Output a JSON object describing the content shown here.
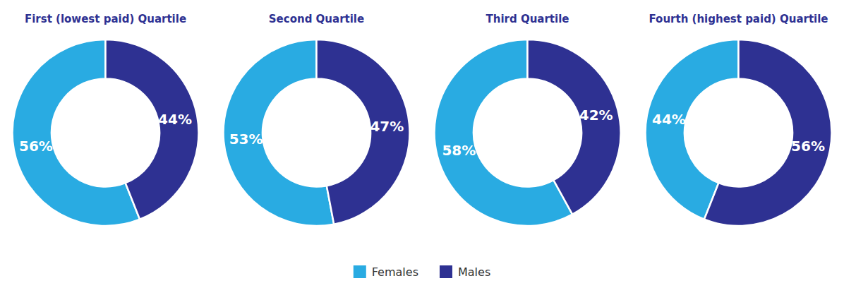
{
  "chart_data": [
    {
      "type": "pie",
      "title": "First (lowest paid) Quartile",
      "categories": [
        "Females",
        "Males"
      ],
      "values": [
        56,
        44
      ],
      "value_labels": [
        "56%",
        "44%"
      ],
      "colors": [
        "#29ABE2",
        "#2E3192"
      ],
      "data_labels": true,
      "legend": "bottom"
    },
    {
      "type": "pie",
      "title": "Second Quartile",
      "categories": [
        "Females",
        "Males"
      ],
      "values": [
        53,
        47
      ],
      "value_labels": [
        "53%",
        "47%"
      ],
      "colors": [
        "#29ABE2",
        "#2E3192"
      ],
      "data_labels": true,
      "legend": "bottom"
    },
    {
      "type": "pie",
      "title": "Third Quartile",
      "categories": [
        "Females",
        "Males"
      ],
      "values": [
        58,
        42
      ],
      "value_labels": [
        "58%",
        "42%"
      ],
      "colors": [
        "#29ABE2",
        "#2E3192"
      ],
      "data_labels": true,
      "legend": "bottom"
    },
    {
      "type": "pie",
      "title": "Fourth (highest paid) Quartile",
      "categories": [
        "Females",
        "Males"
      ],
      "values": [
        44,
        56
      ],
      "value_labels": [
        "44%",
        "56%"
      ],
      "colors": [
        "#29ABE2",
        "#2E3192"
      ],
      "data_labels": true,
      "legend": "bottom"
    }
  ]
}
